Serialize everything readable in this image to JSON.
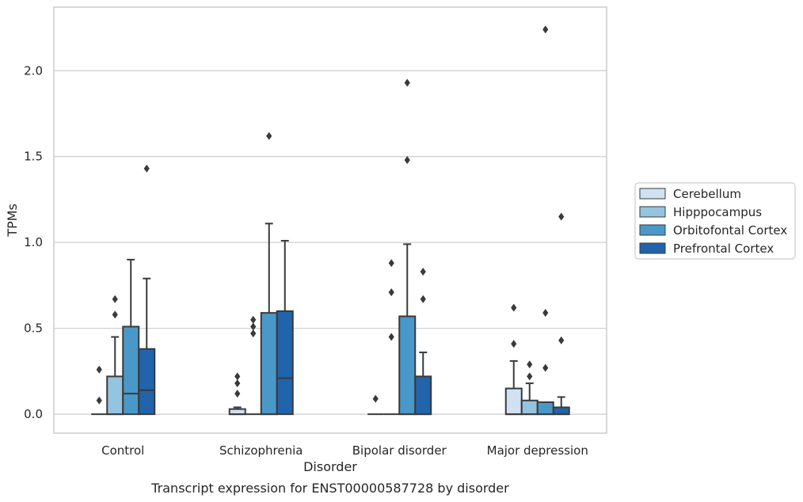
{
  "caption": "Transcript expression for ENST00000587728 by disorder",
  "chart_data": {
    "type": "box",
    "xlabel": "Disorder",
    "ylabel": "TPMs",
    "ylim": [
      -0.11,
      2.37
    ],
    "yticks": [
      0.0,
      0.5,
      1.0,
      1.5,
      2.0
    ],
    "ytick_labels": [
      "0.0",
      "0.5",
      "1.0",
      "1.5",
      "2.0"
    ],
    "grid": "horizontal",
    "legend_position": "right-outside",
    "categories": [
      "Control",
      "Schizophrenia",
      "Bipolar disorder",
      "Major depression"
    ],
    "series": [
      {
        "name": "Cerebellum",
        "color": "#d0e1f2",
        "boxes": [
          {
            "q1": 0.0,
            "median": 0.0,
            "q3": 0.0,
            "whisker_low": 0.0,
            "whisker_high": 0.0,
            "outliers": [
              0.08,
              0.26
            ]
          },
          {
            "q1": 0.0,
            "median": 0.0,
            "q3": 0.03,
            "whisker_low": 0.0,
            "whisker_high": 0.04,
            "outliers": [
              0.12,
              0.18,
              0.22
            ]
          },
          {
            "q1": 0.0,
            "median": 0.0,
            "q3": 0.0,
            "whisker_low": 0.0,
            "whisker_high": 0.0,
            "outliers": [
              0.09
            ]
          },
          {
            "q1": 0.0,
            "median": 0.0,
            "q3": 0.15,
            "whisker_low": 0.0,
            "whisker_high": 0.31,
            "outliers": [
              0.41,
              0.62
            ]
          }
        ]
      },
      {
        "name": "Hipppocampus",
        "color": "#94c4df",
        "boxes": [
          {
            "q1": 0.0,
            "median": 0.0,
            "q3": 0.22,
            "whisker_low": 0.0,
            "whisker_high": 0.45,
            "outliers": [
              0.58,
              0.67
            ]
          },
          {
            "q1": 0.0,
            "median": 0.0,
            "q3": 0.0,
            "whisker_low": 0.0,
            "whisker_high": 0.0,
            "outliers": [
              0.47,
              0.51,
              0.55
            ]
          },
          {
            "q1": 0.0,
            "median": 0.0,
            "q3": 0.0,
            "whisker_low": 0.0,
            "whisker_high": 0.0,
            "outliers": [
              0.45,
              0.71,
              0.88
            ]
          },
          {
            "q1": 0.0,
            "median": 0.0,
            "q3": 0.08,
            "whisker_low": 0.0,
            "whisker_high": 0.18,
            "outliers": [
              0.22,
              0.29
            ]
          }
        ]
      },
      {
        "name": "Orbitofontal Cortex",
        "color": "#4a98c9",
        "boxes": [
          {
            "q1": 0.0,
            "median": 0.12,
            "q3": 0.51,
            "whisker_low": 0.0,
            "whisker_high": 0.9,
            "outliers": []
          },
          {
            "q1": 0.0,
            "median": 0.0,
            "q3": 0.59,
            "whisker_low": 0.0,
            "whisker_high": 1.11,
            "outliers": [
              1.62
            ]
          },
          {
            "q1": 0.0,
            "median": 0.0,
            "q3": 0.57,
            "whisker_low": 0.0,
            "whisker_high": 0.99,
            "outliers": [
              1.48,
              1.93
            ]
          },
          {
            "q1": 0.0,
            "median": 0.0,
            "q3": 0.07,
            "whisker_low": 0.0,
            "whisker_high": 0.07,
            "outliers": [
              0.27,
              0.59,
              2.24
            ]
          }
        ]
      },
      {
        "name": "Prefrontal Cortex",
        "color": "#2164ab",
        "boxes": [
          {
            "q1": 0.0,
            "median": 0.14,
            "q3": 0.38,
            "whisker_low": 0.0,
            "whisker_high": 0.79,
            "outliers": [
              1.43
            ]
          },
          {
            "q1": 0.0,
            "median": 0.21,
            "q3": 0.6,
            "whisker_low": 0.0,
            "whisker_high": 1.01,
            "outliers": []
          },
          {
            "q1": 0.0,
            "median": 0.0,
            "q3": 0.22,
            "whisker_low": 0.0,
            "whisker_high": 0.36,
            "outliers": [
              0.67,
              0.83
            ]
          },
          {
            "q1": 0.0,
            "median": 0.0,
            "q3": 0.04,
            "whisker_low": 0.0,
            "whisker_high": 0.1,
            "outliers": [
              0.43,
              1.15
            ]
          }
        ]
      }
    ]
  }
}
